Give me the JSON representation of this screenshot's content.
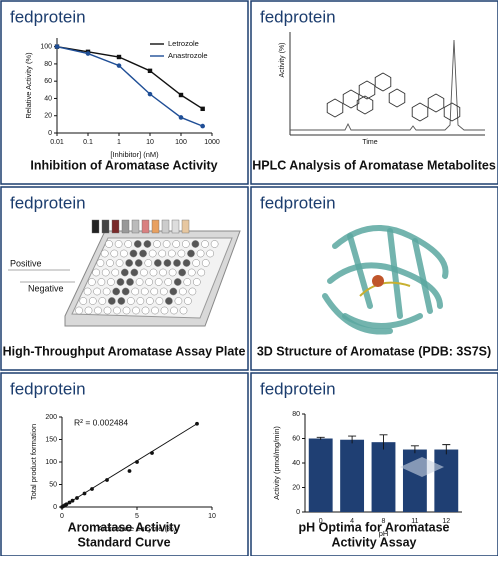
{
  "panels": [
    {
      "brand": "fedprotein",
      "title": "Inhibition of Aromatase Activity",
      "chart": {
        "type": "line",
        "xlabel": "[Inhibitor] (nM)",
        "ylabel": "Relative Activity (%)",
        "xscale": "log",
        "xlim": [
          0.01,
          1000
        ],
        "xticks": [
          0.01,
          0.1,
          1,
          10,
          100,
          1000
        ],
        "ylim": [
          0,
          110
        ],
        "yticks": [
          0,
          20,
          40,
          60,
          80,
          100
        ],
        "x": [
          0.01,
          0.1,
          1,
          10,
          100,
          500
        ],
        "series": [
          {
            "name": "Letrozole",
            "color": "#111111",
            "values": [
              100,
              94,
              88,
              72,
              44,
              28
            ]
          },
          {
            "name": "Anastrozole",
            "color": "#1f4e96",
            "values": [
              100,
              92,
              78,
              45,
              18,
              8
            ]
          }
        ],
        "legend": "upper right"
      }
    },
    {
      "brand": "fedprotein",
      "title": "HPLC Analysis of Aromatase Metabolites",
      "xlabel": "Time",
      "ylabel": "Activity (%)"
    },
    {
      "brand": "fedprotein",
      "title": "High-Throughput Aromatase Assay Plate",
      "labels": [
        "Positive",
        "Negative"
      ]
    },
    {
      "brand": "fedprotein",
      "title": "3D Structure of Aromatase (PDB: 3S7S)"
    },
    {
      "brand": "fedprotein",
      "title": [
        "Aromatase Activity",
        "Standard Curve"
      ],
      "chart": {
        "type": "scatter",
        "xlabel": "Aromatase enzyme  (%)",
        "ylabel": "Total product formation",
        "annotation": "R² = 0.002484",
        "xlim": [
          0,
          10
        ],
        "xticks": [
          0,
          5,
          10
        ],
        "ylim": [
          0,
          200
        ],
        "yticks": [
          0,
          50,
          100,
          150,
          200
        ],
        "color": "#111111",
        "x": [
          0,
          0.1,
          0.2,
          0.3,
          0.5,
          0.7,
          1,
          1.5,
          2,
          3,
          4.5,
          5,
          6,
          9
        ],
        "values": [
          0,
          2,
          4,
          6,
          10,
          14,
          20,
          30,
          40,
          60,
          80,
          100,
          120,
          185
        ]
      }
    },
    {
      "brand": "fedprotein",
      "title": [
        "pH Optima for Aromatase",
        "Activity Assay"
      ],
      "chart": {
        "type": "bar",
        "xlabel": "pH",
        "ylabel": "Activity (pmol/mg/min)",
        "color": "#1f3f73",
        "categories": [
          "0",
          "4",
          "8",
          "11",
          "12"
        ],
        "values": [
          60,
          59,
          57,
          51,
          51
        ],
        "errors": [
          1,
          3,
          6,
          3,
          4
        ],
        "ylim": [
          0,
          80
        ],
        "yticks": [
          0,
          20,
          40,
          60,
          80
        ]
      }
    }
  ]
}
